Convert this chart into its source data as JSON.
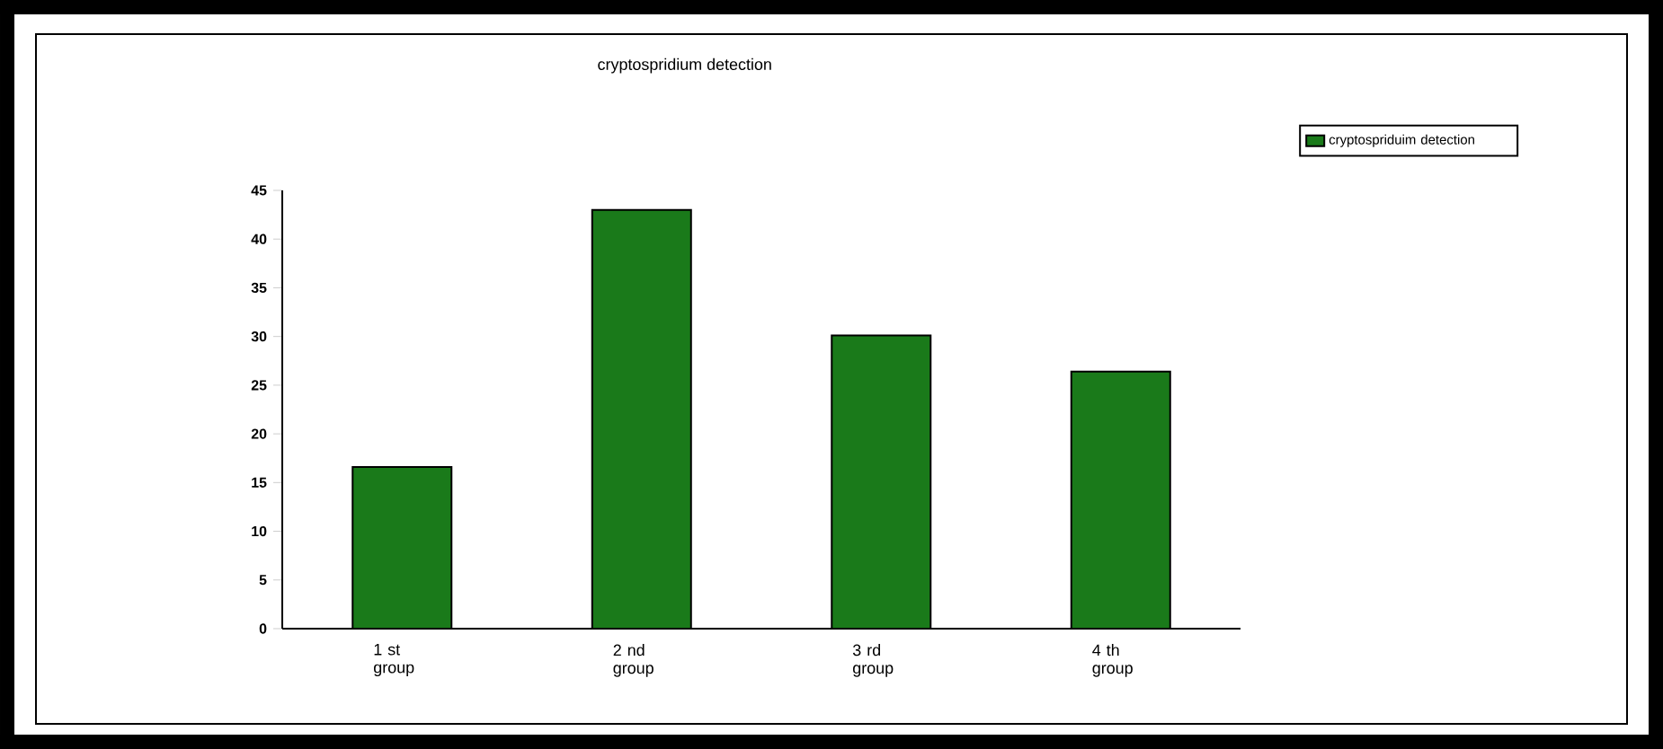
{
  "chart_data": {
    "type": "bar",
    "title": "cryptospridium detection",
    "categories": [
      "1 st group",
      "2 nd group",
      "3 rd group",
      "4 th group"
    ],
    "series": [
      {
        "name": "cryptospriduim detection",
        "color": "#1a7a1a",
        "values": [
          16.6,
          43.0,
          30.1,
          26.4
        ]
      }
    ],
    "ylim": [
      0,
      45
    ],
    "yticks": [
      0,
      5,
      10,
      15,
      20,
      25,
      30,
      35,
      40,
      45
    ],
    "legend": "top right",
    "grid": false
  }
}
